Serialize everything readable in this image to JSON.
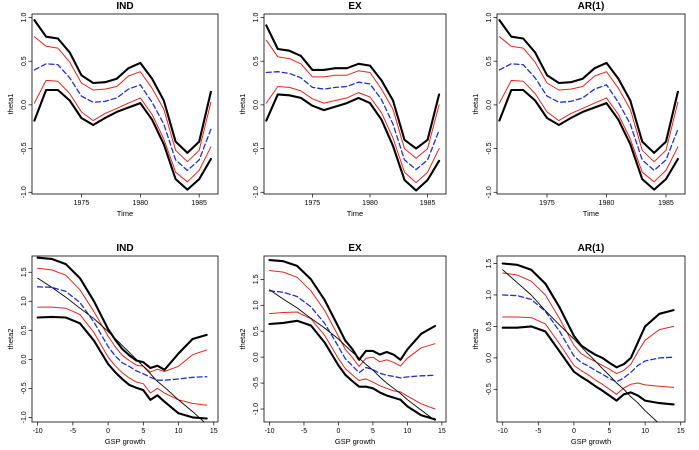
{
  "colors": {
    "bands": "#000000",
    "inner": "#e8231d",
    "estimate": "#1f2fd1",
    "reference": "#000000",
    "frame": "#000000"
  },
  "chart_data": [
    {
      "type": "line",
      "title": "IND",
      "xlabel": "Time",
      "ylabel": "theta1",
      "xlim": [
        1970.8,
        1986.6
      ],
      "ylim": [
        -1.02,
        1.04
      ],
      "xticks": [
        1975,
        1980,
        1985
      ],
      "yticks": [
        -1.0,
        -0.5,
        0.0,
        0.5,
        1.0
      ],
      "x": [
        1971,
        1972,
        1973,
        1974,
        1975,
        1976,
        1977,
        1978,
        1979,
        1980,
        1981,
        1982,
        1983,
        1984,
        1985,
        1986
      ],
      "series": [
        {
          "name": "upper outer band",
          "role": "outer",
          "values": [
            0.97,
            0.78,
            0.76,
            0.6,
            0.34,
            0.25,
            0.26,
            0.3,
            0.42,
            0.48,
            0.3,
            0.05,
            -0.42,
            -0.55,
            -0.42,
            0.15
          ]
        },
        {
          "name": "upper inner band",
          "role": "inner",
          "values": [
            0.78,
            0.67,
            0.65,
            0.49,
            0.25,
            0.17,
            0.18,
            0.21,
            0.33,
            0.38,
            0.19,
            -0.05,
            -0.52,
            -0.65,
            -0.52,
            0.03
          ]
        },
        {
          "name": "estimate",
          "role": "estimate",
          "values": [
            0.4,
            0.47,
            0.46,
            0.31,
            0.1,
            0.03,
            0.04,
            0.08,
            0.18,
            0.23,
            0.03,
            -0.22,
            -0.63,
            -0.75,
            -0.63,
            -0.28
          ]
        },
        {
          "name": "lower inner band",
          "role": "inner",
          "values": [
            0.02,
            0.28,
            0.27,
            0.13,
            -0.08,
            -0.18,
            -0.1,
            -0.04,
            0.02,
            0.08,
            -0.11,
            -0.39,
            -0.77,
            -0.88,
            -0.75,
            -0.48
          ]
        },
        {
          "name": "lower outer band",
          "role": "outer",
          "values": [
            -0.18,
            0.17,
            0.17,
            0.05,
            -0.15,
            -0.23,
            -0.15,
            -0.08,
            -0.03,
            0.02,
            -0.17,
            -0.45,
            -0.85,
            -0.97,
            -0.85,
            -0.62
          ]
        }
      ]
    },
    {
      "type": "line",
      "title": "EX",
      "xlabel": "Time",
      "ylabel": "theta1",
      "xlim": [
        1970.8,
        1986.6
      ],
      "ylim": [
        -1.02,
        1.04
      ],
      "xticks": [
        1975,
        1980,
        1985
      ],
      "yticks": [
        -1.0,
        -0.5,
        0.0,
        0.5,
        1.0
      ],
      "x": [
        1971,
        1972,
        1973,
        1974,
        1975,
        1976,
        1977,
        1978,
        1979,
        1980,
        1981,
        1982,
        1983,
        1984,
        1985,
        1986
      ],
      "series": [
        {
          "name": "upper outer band",
          "role": "outer",
          "values": [
            0.91,
            0.64,
            0.62,
            0.56,
            0.4,
            0.4,
            0.42,
            0.42,
            0.47,
            0.45,
            0.28,
            0.05,
            -0.4,
            -0.5,
            -0.4,
            0.12
          ]
        },
        {
          "name": "upper inner band",
          "role": "inner",
          "values": [
            0.74,
            0.55,
            0.53,
            0.47,
            0.32,
            0.32,
            0.34,
            0.34,
            0.39,
            0.37,
            0.18,
            -0.05,
            -0.5,
            -0.61,
            -0.5,
            0.0
          ]
        },
        {
          "name": "estimate",
          "role": "estimate",
          "values": [
            0.37,
            0.38,
            0.36,
            0.31,
            0.2,
            0.18,
            0.2,
            0.21,
            0.26,
            0.24,
            0.06,
            -0.22,
            -0.63,
            -0.74,
            -0.63,
            -0.29
          ]
        },
        {
          "name": "lower inner band",
          "role": "inner",
          "values": [
            0.02,
            0.21,
            0.2,
            0.16,
            0.07,
            0.02,
            0.05,
            0.08,
            0.14,
            0.09,
            -0.09,
            -0.38,
            -0.77,
            -0.89,
            -0.77,
            -0.5
          ]
        },
        {
          "name": "lower outer band",
          "role": "outer",
          "values": [
            -0.18,
            0.12,
            0.11,
            0.08,
            -0.01,
            -0.06,
            -0.02,
            0.02,
            0.08,
            0.02,
            -0.17,
            -0.47,
            -0.86,
            -0.98,
            -0.86,
            -0.64
          ]
        }
      ]
    },
    {
      "type": "line",
      "title": "AR(1)",
      "xlabel": "Time",
      "ylabel": "theta1",
      "xlim": [
        1970.8,
        1986.6
      ],
      "ylim": [
        -1.02,
        1.04
      ],
      "xticks": [
        1975,
        1980,
        1985
      ],
      "yticks": [
        -1.0,
        -0.5,
        0.0,
        0.5,
        1.0
      ],
      "x": [
        1971,
        1972,
        1973,
        1974,
        1975,
        1976,
        1977,
        1978,
        1979,
        1980,
        1981,
        1982,
        1983,
        1984,
        1985,
        1986
      ],
      "series": [
        {
          "name": "upper outer band",
          "role": "outer",
          "values": [
            0.97,
            0.78,
            0.76,
            0.6,
            0.34,
            0.25,
            0.26,
            0.3,
            0.42,
            0.48,
            0.3,
            0.05,
            -0.42,
            -0.55,
            -0.42,
            0.15
          ]
        },
        {
          "name": "upper inner band",
          "role": "inner",
          "values": [
            0.78,
            0.67,
            0.65,
            0.49,
            0.25,
            0.17,
            0.18,
            0.21,
            0.33,
            0.38,
            0.19,
            -0.05,
            -0.52,
            -0.65,
            -0.52,
            0.03
          ]
        },
        {
          "name": "estimate",
          "role": "estimate",
          "values": [
            0.4,
            0.47,
            0.46,
            0.31,
            0.1,
            0.03,
            0.04,
            0.08,
            0.18,
            0.23,
            0.03,
            -0.22,
            -0.63,
            -0.75,
            -0.63,
            -0.28
          ]
        },
        {
          "name": "lower inner band",
          "role": "inner",
          "values": [
            0.02,
            0.28,
            0.27,
            0.13,
            -0.08,
            -0.18,
            -0.1,
            -0.04,
            0.02,
            0.08,
            -0.11,
            -0.39,
            -0.77,
            -0.88,
            -0.75,
            -0.48
          ]
        },
        {
          "name": "lower outer band",
          "role": "outer",
          "values": [
            -0.18,
            0.17,
            0.17,
            0.05,
            -0.15,
            -0.23,
            -0.15,
            -0.08,
            -0.03,
            0.02,
            -0.17,
            -0.45,
            -0.85,
            -0.97,
            -0.85,
            -0.62
          ]
        }
      ]
    },
    {
      "type": "line",
      "title": "IND",
      "xlabel": "GSP growth",
      "ylabel": "theta2",
      "xlim": [
        -10.8,
        15.6
      ],
      "ylim": [
        -1.08,
        1.78
      ],
      "xticks": [
        -10,
        -5,
        0,
        5,
        10,
        15
      ],
      "yticks": [
        -1.0,
        -0.5,
        0.0,
        0.5,
        1.0,
        1.5
      ],
      "x": [
        -10,
        -8,
        -6,
        -4,
        -2,
        0,
        1,
        2,
        3,
        4,
        5,
        6,
        7,
        8,
        10,
        12,
        14
      ],
      "series": [
        {
          "name": "upper outer band",
          "role": "outer",
          "values": [
            1.75,
            1.73,
            1.64,
            1.4,
            1.0,
            0.52,
            0.34,
            0.18,
            0.07,
            -0.02,
            -0.05,
            -0.15,
            -0.11,
            -0.18,
            0.1,
            0.35,
            0.42
          ]
        },
        {
          "name": "upper inner band",
          "role": "inner",
          "values": [
            1.57,
            1.54,
            1.45,
            1.2,
            0.82,
            0.4,
            0.22,
            0.07,
            -0.02,
            -0.1,
            -0.12,
            -0.22,
            -0.17,
            -0.21,
            -0.12,
            0.08,
            0.16
          ]
        },
        {
          "name": "estimate",
          "role": "estimate",
          "values": [
            1.25,
            1.24,
            1.17,
            0.98,
            0.64,
            0.22,
            0.06,
            -0.06,
            -0.12,
            -0.2,
            -0.25,
            -0.31,
            -0.36,
            -0.36,
            -0.34,
            -0.31,
            -0.3
          ]
        },
        {
          "name": "lower inner band",
          "role": "inner",
          "values": [
            0.9,
            0.9,
            0.88,
            0.77,
            0.46,
            0.04,
            -0.11,
            -0.23,
            -0.32,
            -0.39,
            -0.42,
            -0.58,
            -0.5,
            -0.58,
            -0.7,
            -0.76,
            -0.79
          ]
        },
        {
          "name": "lower outer band",
          "role": "outer",
          "values": [
            0.72,
            0.73,
            0.72,
            0.62,
            0.32,
            -0.08,
            -0.22,
            -0.34,
            -0.44,
            -0.49,
            -0.53,
            -0.7,
            -0.62,
            -0.73,
            -0.93,
            -1.0,
            -1.02
          ]
        },
        {
          "name": "reference line",
          "role": "reference",
          "values": [
            1.4,
            1.24,
            1.07,
            0.88,
            0.7,
            0.48,
            0.36,
            0.24,
            0.12,
            0.0,
            -0.12,
            -0.25,
            -0.38,
            -0.48,
            -0.7,
            -0.9,
            -1.12
          ]
        }
      ]
    },
    {
      "type": "line",
      "title": "EX",
      "xlabel": "GSP growth",
      "ylabel": "theta2",
      "xlim": [
        -10.8,
        15.6
      ],
      "ylim": [
        -1.25,
        1.95
      ],
      "xticks": [
        -10,
        -5,
        0,
        5,
        10,
        15
      ],
      "yticks": [
        -1.0,
        -0.5,
        0.0,
        0.5,
        1.0,
        1.5
      ],
      "x": [
        -10,
        -8,
        -6,
        -4,
        -2,
        0,
        1,
        2,
        3,
        4,
        5,
        6,
        7,
        8,
        9,
        10,
        12,
        14
      ],
      "series": [
        {
          "name": "upper outer band",
          "role": "outer",
          "values": [
            1.87,
            1.85,
            1.76,
            1.5,
            1.1,
            0.58,
            0.32,
            0.16,
            -0.05,
            0.12,
            0.12,
            0.05,
            0.1,
            0.05,
            -0.05,
            0.15,
            0.45,
            0.6
          ]
        },
        {
          "name": "upper inner band",
          "role": "inner",
          "values": [
            1.67,
            1.64,
            1.54,
            1.28,
            0.9,
            0.4,
            0.15,
            0.0,
            -0.18,
            -0.02,
            0.0,
            -0.09,
            -0.05,
            -0.1,
            -0.17,
            -0.02,
            0.18,
            0.26
          ]
        },
        {
          "name": "estimate",
          "role": "estimate",
          "values": [
            1.28,
            1.25,
            1.17,
            0.97,
            0.65,
            0.2,
            -0.03,
            -0.16,
            -0.3,
            -0.2,
            -0.24,
            -0.31,
            -0.35,
            -0.37,
            -0.4,
            -0.38,
            -0.36,
            -0.35
          ]
        },
        {
          "name": "lower inner band",
          "role": "inner",
          "values": [
            0.84,
            0.86,
            0.87,
            0.74,
            0.42,
            -0.03,
            -0.22,
            -0.34,
            -0.45,
            -0.42,
            -0.48,
            -0.55,
            -0.6,
            -0.65,
            -0.67,
            -0.75,
            -0.9,
            -1.0
          ]
        },
        {
          "name": "lower outer band",
          "role": "outer",
          "values": [
            0.64,
            0.66,
            0.7,
            0.61,
            0.28,
            -0.16,
            -0.34,
            -0.46,
            -0.57,
            -0.57,
            -0.6,
            -0.68,
            -0.74,
            -0.78,
            -0.82,
            -0.95,
            -1.12,
            -1.2
          ]
        },
        {
          "name": "reference line",
          "role": "reference",
          "values": [
            1.3,
            1.12,
            0.95,
            0.75,
            0.56,
            0.35,
            0.22,
            0.1,
            -0.02,
            -0.14,
            -0.25,
            -0.38,
            -0.5,
            -0.6,
            -0.7,
            -0.82,
            -1.02,
            -1.22
          ]
        }
      ]
    },
    {
      "type": "line",
      "title": "AR(1)",
      "xlabel": "GSP growth",
      "ylabel": "theta2",
      "xlim": [
        -10.8,
        15.6
      ],
      "ylim": [
        -1.02,
        1.62
      ],
      "xticks": [
        -10,
        -5,
        0,
        5,
        10,
        15
      ],
      "yticks": [
        -0.5,
        0.0,
        0.5,
        1.0,
        1.5
      ],
      "x": [
        -10,
        -8,
        -6,
        -4,
        -2,
        0,
        1,
        2,
        3,
        4,
        5,
        6,
        7,
        8,
        9,
        10,
        12,
        14
      ],
      "series": [
        {
          "name": "upper outer band",
          "role": "outer",
          "values": [
            1.5,
            1.48,
            1.4,
            1.18,
            0.8,
            0.35,
            0.2,
            0.12,
            0.05,
            0.0,
            -0.08,
            -0.15,
            -0.1,
            0.0,
            0.25,
            0.5,
            0.7,
            0.76
          ]
        },
        {
          "name": "upper inner band",
          "role": "inner",
          "values": [
            1.35,
            1.32,
            1.22,
            1.0,
            0.62,
            0.2,
            0.07,
            0.0,
            -0.06,
            -0.12,
            -0.18,
            -0.25,
            -0.2,
            -0.1,
            0.1,
            0.28,
            0.45,
            0.5
          ]
        },
        {
          "name": "estimate",
          "role": "estimate",
          "values": [
            1.0,
            0.99,
            0.93,
            0.74,
            0.42,
            0.03,
            -0.07,
            -0.13,
            -0.2,
            -0.26,
            -0.33,
            -0.38,
            -0.32,
            -0.23,
            -0.12,
            -0.05,
            0.0,
            0.01
          ]
        },
        {
          "name": "lower inner band",
          "role": "inner",
          "values": [
            0.65,
            0.65,
            0.64,
            0.54,
            0.22,
            -0.12,
            -0.2,
            -0.27,
            -0.35,
            -0.42,
            -0.5,
            -0.58,
            -0.48,
            -0.42,
            -0.4,
            -0.43,
            -0.45,
            -0.47
          ]
        },
        {
          "name": "lower outer band",
          "role": "outer",
          "values": [
            0.48,
            0.48,
            0.5,
            0.42,
            0.1,
            -0.22,
            -0.3,
            -0.37,
            -0.45,
            -0.52,
            -0.6,
            -0.68,
            -0.58,
            -0.55,
            -0.6,
            -0.68,
            -0.72,
            -0.74
          ]
        },
        {
          "name": "reference line",
          "role": "reference",
          "values": [
            1.4,
            1.2,
            1.0,
            0.75,
            0.52,
            0.3,
            0.18,
            0.06,
            -0.05,
            -0.17,
            -0.28,
            -0.4,
            -0.5,
            -0.62,
            -0.72,
            -0.84,
            -1.05,
            -1.25
          ]
        }
      ]
    }
  ]
}
